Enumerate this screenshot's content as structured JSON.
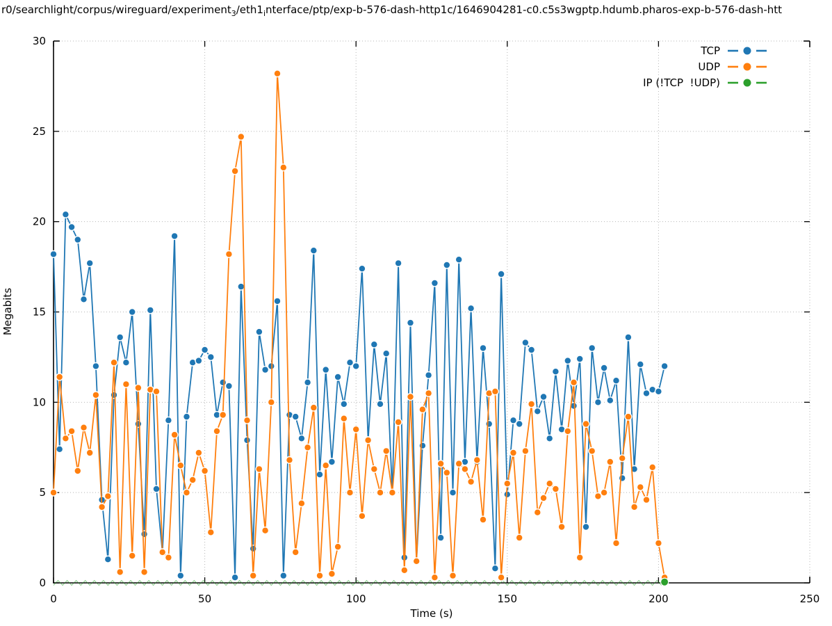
{
  "title": {
    "part1": "r0/searchlight/corpus/wireguard/experiment",
    "sub1": "3",
    "part2": "/eth1",
    "sub2": "i",
    "part3": "nterface/ptp/exp-b-576-dash-http1c/1646904281-c0.c5s3wgptp.hdumb.pharos-exp-b-576-dash-htt"
  },
  "chart_data": {
    "type": "line",
    "xlabel": "Time (s)",
    "ylabel": "Megabits",
    "xlim": [
      0,
      250
    ],
    "ylim": [
      0,
      30
    ],
    "xticks": [
      0,
      50,
      100,
      150,
      200,
      250
    ],
    "yticks": [
      0,
      5,
      10,
      15,
      20,
      25,
      30
    ],
    "grid": "dotted",
    "legend_position": "top-right-inside",
    "grid_color": "#b5b5b5",
    "axis_color": "#000000",
    "marker": "filled-circle-white-edge",
    "x_start": 0,
    "x_step": 2,
    "series": [
      {
        "name": "TCP",
        "color": "#1f77b4",
        "values": [
          18.2,
          7.4,
          20.4,
          19.7,
          19.0,
          15.7,
          17.7,
          12.0,
          4.6,
          1.3,
          10.4,
          13.6,
          12.2,
          15.0,
          8.8,
          2.7,
          15.1,
          5.2,
          1.7,
          9.0,
          19.2,
          0.4,
          9.2,
          12.2,
          12.3,
          12.9,
          12.5,
          9.3,
          11.1,
          10.9,
          0.3,
          16.4,
          7.9,
          1.9,
          13.9,
          11.8,
          12.0,
          15.6,
          0.4,
          9.3,
          9.2,
          8.0,
          11.1,
          18.4,
          6.0,
          11.8,
          6.7,
          11.4,
          9.9,
          12.2,
          12.0,
          17.4,
          7.9,
          13.2,
          9.9,
          12.7,
          5.0,
          17.7,
          1.4,
          14.4,
          1.2,
          7.6,
          11.5,
          16.6,
          2.5,
          17.6,
          5.0,
          17.9,
          6.7,
          15.2,
          6.7,
          13.0,
          8.8,
          0.8,
          17.1,
          4.9,
          9.0,
          8.8,
          13.3,
          12.9,
          9.5,
          10.3,
          8.0,
          11.7,
          8.5,
          12.3,
          9.8,
          12.4,
          3.1,
          13.0,
          10.0,
          11.9,
          10.1,
          11.2,
          5.8,
          13.6,
          6.3,
          12.1,
          10.5,
          10.7,
          10.6,
          12.0
        ]
      },
      {
        "name": "UDP",
        "color": "#ff7f0e",
        "values": [
          5.0,
          11.4,
          8.0,
          8.4,
          6.2,
          8.6,
          7.2,
          10.4,
          4.2,
          4.8,
          12.2,
          0.6,
          11.0,
          1.5,
          10.8,
          0.6,
          10.7,
          10.6,
          1.7,
          1.4,
          8.2,
          6.5,
          5.0,
          5.7,
          7.2,
          6.2,
          2.8,
          8.4,
          9.3,
          18.2,
          22.8,
          24.7,
          9.0,
          0.4,
          6.3,
          2.9,
          10.0,
          28.2,
          23.0,
          6.8,
          1.7,
          4.4,
          7.5,
          9.7,
          0.4,
          6.5,
          0.5,
          2.0,
          9.1,
          5.0,
          8.5,
          3.7,
          7.9,
          6.3,
          5.0,
          7.3,
          5.0,
          8.9,
          0.7,
          10.3,
          1.2,
          9.6,
          10.5,
          0.3,
          6.6,
          6.1,
          0.4,
          6.6,
          6.3,
          5.6,
          6.8,
          3.5,
          10.5,
          10.6,
          0.3,
          5.5,
          7.2,
          2.5,
          7.3,
          9.9,
          3.9,
          4.7,
          5.5,
          5.2,
          3.1,
          8.4,
          11.1,
          1.4,
          8.8,
          7.3,
          4.8,
          5.0,
          6.7,
          2.2,
          6.9,
          9.2,
          4.2,
          5.3,
          4.6,
          6.4,
          2.2,
          0.3
        ]
      },
      {
        "name": "IP (!TCP  !UDP)",
        "color": "#2ca02c",
        "marker_point": [
          202,
          0.05
        ],
        "baseline_zigzag": {
          "t_start": 0,
          "t_end": 202,
          "period": 3,
          "v_amp": 0.15
        }
      }
    ]
  }
}
